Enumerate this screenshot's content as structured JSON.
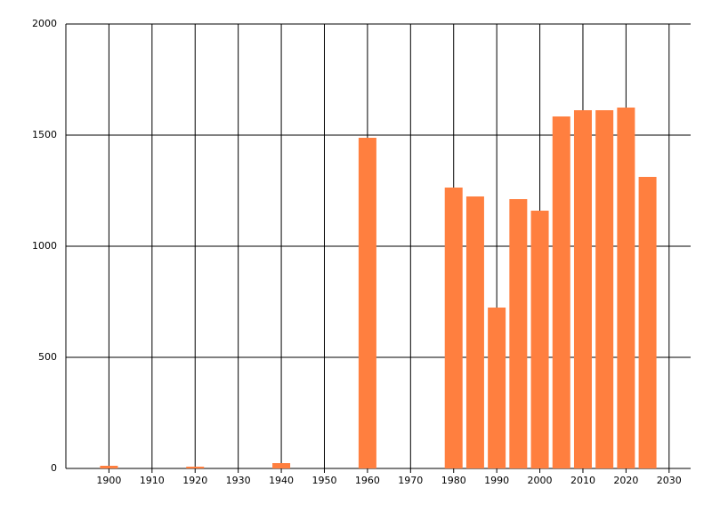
{
  "chart_data": {
    "type": "bar",
    "x": [
      1900,
      1920,
      1940,
      1960,
      1980,
      1985,
      1990,
      1995,
      2000,
      2005,
      2010,
      2015,
      2020,
      2025
    ],
    "values": [
      12,
      8,
      24,
      1488,
      1264,
      1224,
      724,
      1212,
      1160,
      1584,
      1612,
      1612,
      1624,
      1312
    ],
    "color": "#ff7f3f",
    "xlim": [
      1890,
      2035
    ],
    "xticks": [
      1900,
      1910,
      1920,
      1930,
      1940,
      1950,
      1960,
      1970,
      1980,
      1990,
      2000,
      2010,
      2020,
      2030
    ],
    "ylim": [
      0,
      2000
    ],
    "yticks": [
      0,
      500,
      1000,
      1500,
      2000
    ],
    "grid": true
  }
}
